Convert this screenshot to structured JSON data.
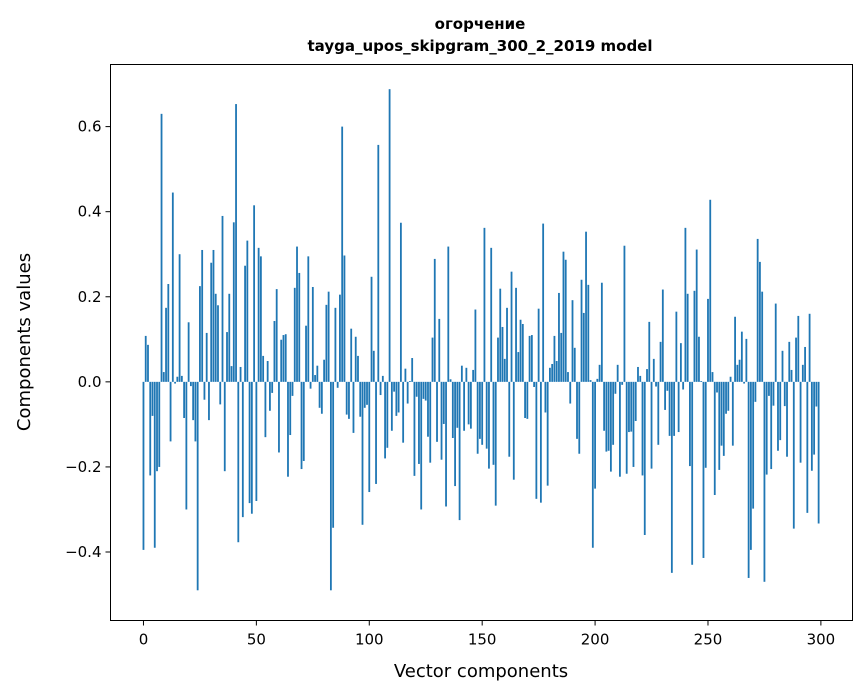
{
  "chart_data": {
    "type": "bar",
    "title": "огорчение",
    "subtitle": "tayga_upos_skipgram_300_2_2019 model",
    "xlabel": "Vector components",
    "ylabel": "Components values",
    "xlim": [
      -14.6,
      314
    ],
    "ylim": [
      -0.561,
      0.746
    ],
    "xticks": [
      0,
      50,
      100,
      150,
      200,
      250,
      300
    ],
    "xtick_labels": [
      "0",
      "50",
      "100",
      "150",
      "200",
      "250",
      "300"
    ],
    "yticks": [
      -0.4,
      -0.2,
      0.0,
      0.2,
      0.4,
      0.6
    ],
    "ytick_labels": [
      "−0.4",
      "−0.2",
      "0.0",
      "0.2",
      "0.4",
      "0.6"
    ],
    "grid": false,
    "bar_color": "#1f77b4",
    "values": [
      -0.395,
      0.108,
      0.087,
      -0.22,
      -0.08,
      -0.39,
      -0.21,
      -0.2,
      0.63,
      0.023,
      0.174,
      0.23,
      -0.14,
      0.445,
      -0.004,
      0.012,
      0.3,
      0.014,
      -0.085,
      -0.3,
      0.14,
      -0.01,
      -0.09,
      -0.14,
      -0.49,
      0.225,
      0.31,
      -0.042,
      0.115,
      -0.09,
      0.28,
      0.31,
      0.207,
      0.18,
      -0.053,
      0.39,
      -0.21,
      0.117,
      0.207,
      0.037,
      0.375,
      0.653,
      -0.377,
      0.035,
      -0.318,
      0.273,
      0.332,
      -0.285,
      -0.31,
      0.415,
      -0.28,
      0.315,
      0.295,
      0.061,
      -0.13,
      0.049,
      -0.068,
      -0.026,
      0.143,
      0.218,
      -0.166,
      0.099,
      0.11,
      0.112,
      -0.223,
      -0.125,
      -0.033,
      0.221,
      0.318,
      0.256,
      -0.205,
      -0.186,
      0.132,
      0.295,
      -0.016,
      0.223,
      0.016,
      0.038,
      -0.061,
      -0.075,
      0.052,
      0.181,
      0.212,
      -0.49,
      -0.343,
      0.174,
      -0.014,
      0.205,
      0.6,
      0.297,
      -0.077,
      -0.087,
      0.125,
      -0.12,
      0.106,
      0.061,
      -0.082,
      -0.336,
      -0.061,
      -0.054,
      -0.259,
      0.247,
      0.073,
      -0.24,
      0.557,
      -0.031,
      0.014,
      -0.18,
      -0.155,
      0.688,
      -0.115,
      -0.023,
      -0.08,
      -0.072,
      0.374,
      -0.143,
      0.031,
      -0.051,
      0.002,
      0.056,
      -0.221,
      -0.035,
      -0.193,
      -0.3,
      -0.04,
      -0.044,
      -0.129,
      -0.19,
      0.104,
      0.289,
      -0.141,
      0.148,
      -0.183,
      -0.099,
      -0.293,
      0.318,
      0.006,
      -0.132,
      -0.245,
      -0.108,
      -0.325,
      0.038,
      -0.115,
      0.033,
      -0.1,
      -0.11,
      0.028,
      0.17,
      -0.169,
      -0.134,
      -0.148,
      0.362,
      -0.157,
      -0.204,
      0.315,
      -0.195,
      -0.291,
      0.104,
      0.219,
      0.129,
      0.054,
      0.174,
      -0.176,
      0.259,
      -0.23,
      0.221,
      0.07,
      0.146,
      0.136,
      -0.085,
      -0.087,
      0.108,
      0.11,
      -0.012,
      -0.275,
      0.172,
      -0.284,
      0.372,
      -0.072,
      -0.244,
      0.033,
      0.042,
      0.108,
      0.049,
      0.209,
      0.115,
      0.306,
      0.287,
      0.023,
      -0.051,
      0.192,
      0.08,
      -0.134,
      -0.169,
      0.24,
      0.162,
      0.353,
      0.228,
      0.004,
      -0.39,
      -0.251,
      0.007,
      0.04,
      0.233,
      -0.115,
      -0.164,
      -0.162,
      -0.211,
      -0.148,
      -0.028,
      0.04,
      -0.223,
      -0.007,
      0.32,
      -0.216,
      -0.118,
      -0.117,
      -0.2,
      -0.092,
      0.035,
      0.014,
      -0.22,
      -0.36,
      0.03,
      0.141,
      -0.204,
      0.054,
      -0.011,
      -0.148,
      0.094,
      0.217,
      -0.066,
      -0.021,
      -0.127,
      -0.449,
      -0.127,
      0.165,
      -0.118,
      0.091,
      -0.018,
      0.362,
      0.207,
      -0.198,
      -0.43,
      0.214,
      0.311,
      0.106,
      0.002,
      -0.414,
      -0.202,
      0.195,
      0.428,
      0.023,
      -0.266,
      -0.025,
      -0.207,
      -0.15,
      -0.174,
      -0.075,
      -0.068,
      0.012,
      -0.15,
      0.153,
      0.04,
      0.052,
      0.118,
      -0.004,
      0.101,
      -0.461,
      -0.395,
      -0.298,
      -0.047,
      0.336,
      0.282,
      0.212,
      -0.47,
      -0.218,
      -0.033,
      -0.205,
      -0.056,
      0.184,
      -0.162,
      -0.137,
      0.073,
      -0.057,
      -0.176,
      0.094,
      0.028,
      -0.345,
      0.104,
      0.155,
      -0.19,
      0.04,
      0.082,
      -0.308,
      0.16,
      -0.209,
      -0.171,
      -0.058,
      -0.333
    ]
  }
}
